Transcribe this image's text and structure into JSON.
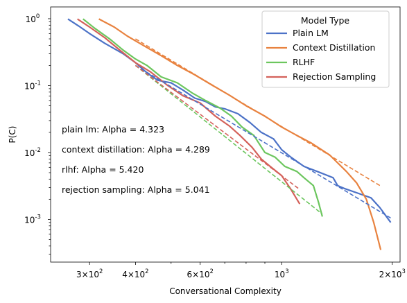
{
  "chart_data": {
    "type": "line",
    "xlabel": "Conversational Complexity",
    "ylabel": "P(C)",
    "xscale": "log",
    "yscale": "log",
    "xlim": [
      235,
      2100
    ],
    "ylim": [
      0.00023,
      1.5
    ],
    "xticks": [
      {
        "value": 300,
        "base": "3",
        "exp": "2"
      },
      {
        "value": 400,
        "base": "4",
        "exp": "2"
      },
      {
        "value": 600,
        "base": "6",
        "exp": "2"
      },
      {
        "value": 1000,
        "base": "",
        "exp": "3"
      },
      {
        "value": 2000,
        "base": "2",
        "exp": "3"
      }
    ],
    "yticks": [
      {
        "value": 1,
        "exp": "0"
      },
      {
        "value": 0.1,
        "exp": "-1"
      },
      {
        "value": 0.01,
        "exp": "-2"
      },
      {
        "value": 0.001,
        "exp": "-3"
      }
    ],
    "legend": {
      "title": "Model Type",
      "position": "top-right"
    },
    "annotations": [
      "plain lm: Alpha = 4.323",
      "context distillation: Alpha = 4.289",
      "rlhf: Alpha = 5.420",
      "rejection sampling: Alpha = 5.041"
    ],
    "series": [
      {
        "name": "Plain LM",
        "color": "#4c72c7",
        "x": [
          262,
          280,
          300,
          330,
          370,
          400,
          430,
          460,
          500,
          540,
          580,
          620,
          660,
          700,
          760,
          820,
          880,
          950,
          1000,
          1060,
          1150,
          1250,
          1380,
          1420,
          1480,
          1600,
          1750,
          1850,
          1980
        ],
        "y": [
          0.99,
          0.78,
          0.6,
          0.43,
          0.3,
          0.22,
          0.155,
          0.12,
          0.11,
          0.085,
          0.065,
          0.058,
          0.048,
          0.045,
          0.038,
          0.028,
          0.02,
          0.016,
          0.011,
          0.0085,
          0.0062,
          0.0052,
          0.0042,
          0.0032,
          0.0029,
          0.0025,
          0.0021,
          0.0015,
          0.0009
        ]
      },
      {
        "name": "Context Distillation",
        "color": "#e8823f",
        "x": [
          318,
          350,
          380,
          420,
          470,
          520,
          580,
          650,
          720,
          800,
          900,
          1000,
          1100,
          1200,
          1350,
          1500,
          1600,
          1700,
          1780,
          1860
        ],
        "y": [
          0.99,
          0.75,
          0.55,
          0.4,
          0.28,
          0.2,
          0.145,
          0.1,
          0.072,
          0.05,
          0.035,
          0.024,
          0.018,
          0.014,
          0.0092,
          0.0052,
          0.0035,
          0.002,
          0.0009,
          0.00035
        ]
      },
      {
        "name": "RLHF",
        "color": "#6cc65e",
        "x": [
          288,
          310,
          340,
          370,
          400,
          430,
          470,
          520,
          570,
          620,
          680,
          730,
          780,
          840,
          900,
          960,
          1020,
          1100,
          1150,
          1220,
          1260,
          1290
        ],
        "y": [
          0.99,
          0.72,
          0.5,
          0.34,
          0.25,
          0.2,
          0.135,
          0.11,
          0.078,
          0.06,
          0.046,
          0.035,
          0.024,
          0.018,
          0.01,
          0.0085,
          0.0062,
          0.0052,
          0.0042,
          0.0032,
          0.0018,
          0.0011
        ]
      },
      {
        "name": "Rejection Sampling",
        "color": "#d4615a",
        "x": [
          278,
          300,
          330,
          360,
          400,
          440,
          490,
          540,
          600,
          660,
          720,
          770,
          830,
          880,
          930,
          1000,
          1060,
          1120
        ],
        "y": [
          0.99,
          0.75,
          0.52,
          0.35,
          0.22,
          0.16,
          0.1,
          0.07,
          0.055,
          0.035,
          0.025,
          0.018,
          0.012,
          0.008,
          0.0062,
          0.0045,
          0.0028,
          0.0017
        ]
      }
    ],
    "fits": [
      {
        "series": "Plain LM",
        "color": "#4c72c7",
        "x": [
          400,
          1980
        ],
        "y": [
          0.2,
          0.00105
        ]
      },
      {
        "series": "Context Distillation",
        "color": "#e8823f",
        "x": [
          400,
          1870
        ],
        "y": [
          0.5,
          0.0031
        ]
      },
      {
        "series": "RLHF",
        "color": "#6cc65e",
        "x": [
          400,
          1290
        ],
        "y": [
          0.2,
          0.0012
        ]
      },
      {
        "series": "Rejection Sampling",
        "color": "#d4615a",
        "x": [
          400,
          1120
        ],
        "y": [
          0.2,
          0.0028
        ]
      }
    ]
  }
}
